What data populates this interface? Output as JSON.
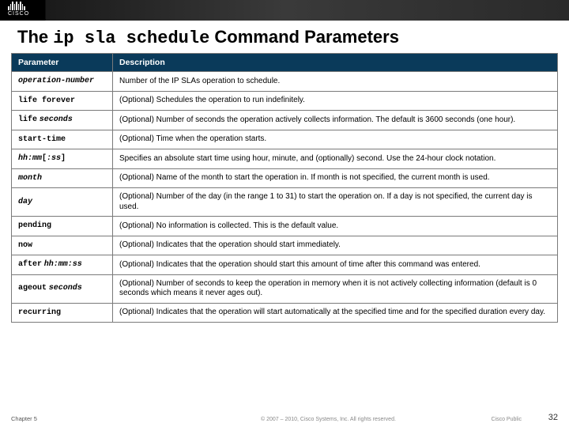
{
  "banner": {
    "logo_text": "CISCO"
  },
  "title": {
    "prefix": "The ",
    "command": "ip sla schedule",
    "suffix": " Command Parameters"
  },
  "table": {
    "header_bg": "#0a3a5a",
    "header_fg": "#ffffff",
    "border_color": "#7a7a7a",
    "columns": [
      "Parameter",
      "Description"
    ],
    "rows": [
      {
        "param_html": "<span class='ital'>operation-number</span>",
        "desc": "Number of the IP SLAs operation to schedule."
      },
      {
        "param_html": "<span class='mono'>life forever</span>",
        "desc": "(Optional) Schedules the operation to run indefinitely."
      },
      {
        "param_html": "<span class='mono'>life</span> <span class='ital'>seconds</span>",
        "desc": "(Optional) Number of seconds the operation actively collects information. The default is 3600 seconds (one hour)."
      },
      {
        "param_html": "<span class='mono'>start-time</span>",
        "desc": "(Optional) Time when the operation starts."
      },
      {
        "param_html": "<span class='ital'>hh:mm</span><span class='mono'>[</span><span class='ital'>:ss</span><span class='mono'>]</span>",
        "desc": "Specifies an absolute start time using hour, minute, and (optionally) second. Use the 24-hour clock notation."
      },
      {
        "param_html": "<span class='ital'>month</span>",
        "desc": "(Optional) Name of the month to start the operation in. If month is not specified, the current month is used."
      },
      {
        "param_html": "<span class='ital'>day</span>",
        "desc": "(Optional) Number of the day (in the range 1 to 31) to start the operation on. If a day is not specified, the current day is used."
      },
      {
        "param_html": "<span class='mono'>pending</span>",
        "desc": "(Optional) No information is collected. This is the default value."
      },
      {
        "param_html": "<span class='mono'>now</span>",
        "desc": "(Optional) Indicates that the operation should start immediately."
      },
      {
        "param_html": "<span class='mono'>after</span> <span class='ital'>hh:mm:ss</span>",
        "desc": "(Optional) Indicates that the operation should start this amount of time after this command was entered."
      },
      {
        "param_html": "<span class='mono'>ageout</span> <span class='ital'>seconds</span>",
        "desc": "(Optional) Number of seconds to keep the operation in memory when it is not actively collecting information (default is 0 seconds which means it never ages out)."
      },
      {
        "param_html": "<span class='mono'>recurring</span>",
        "desc": "(Optional) Indicates that the operation will start automatically at the specified time and for the specified duration every day."
      }
    ]
  },
  "footer": {
    "chapter": "Chapter 5",
    "copyright": "© 2007 – 2010, Cisco Systems, Inc. All rights reserved.",
    "public": "Cisco Public",
    "page_number": "32"
  }
}
